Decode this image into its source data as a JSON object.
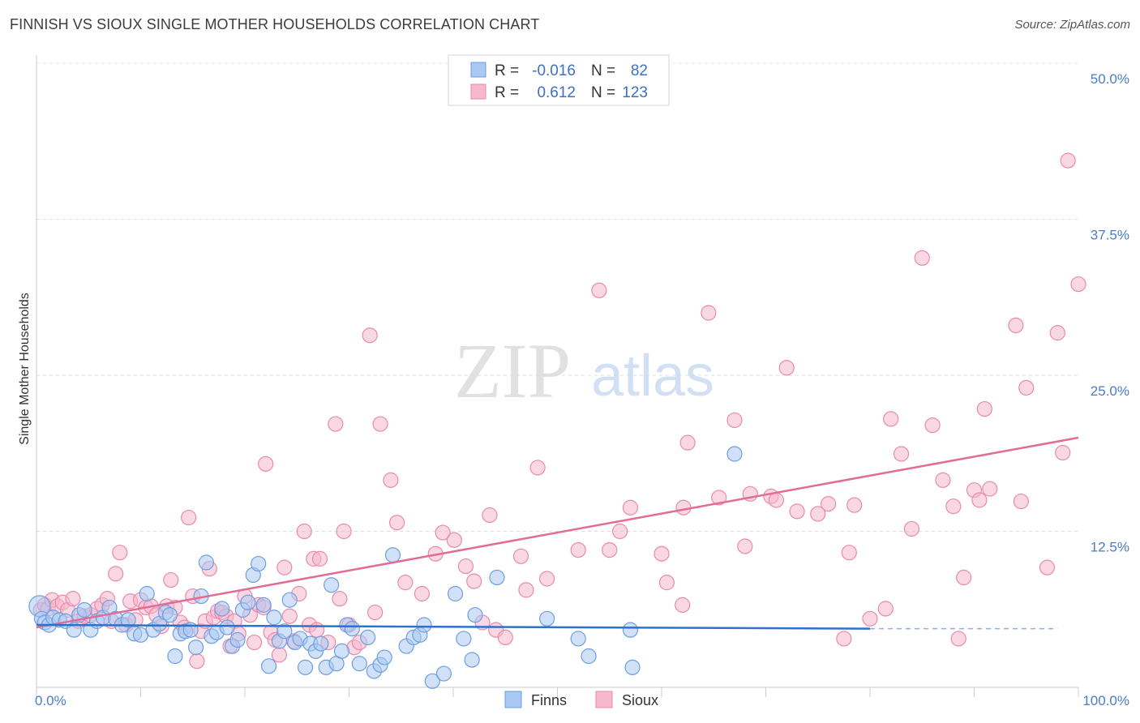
{
  "title": "FINNISH VS SIOUX SINGLE MOTHER HOUSEHOLDS CORRELATION CHART",
  "source": "Source: ZipAtlas.com",
  "watermark": {
    "zip": "ZIP",
    "atlas": "atlas"
  },
  "legend": [
    {
      "r_label": "R =",
      "r_value": "-0.016",
      "n_label": "N =",
      "n_value": "82",
      "color": "#a9c8f2"
    },
    {
      "r_label": "R =",
      "r_value": "0.612",
      "n_label": "N =",
      "n_value": "123",
      "color": "#f6b8cc"
    }
  ],
  "chart_data": {
    "type": "scatter",
    "title": "FINNISH VS SIOUX SINGLE MOTHER HOUSEHOLDS CORRELATION CHART",
    "xlabel": "",
    "ylabel": "Single Mother Households",
    "xlim": [
      0,
      100
    ],
    "ylim": [
      0,
      50
    ],
    "x_tick_labels": [
      "0.0%",
      "100.0%"
    ],
    "y_ticks": [
      12.5,
      25.0,
      37.5,
      50.0
    ],
    "y_tick_labels": [
      "12.5%",
      "25.0%",
      "37.5%",
      "50.0%"
    ],
    "grid": true,
    "legend_position": "bottom-center",
    "series": [
      {
        "name": "Finns",
        "color": "#a9c8f2",
        "edge": "#6d9fe0",
        "trend": {
          "x": [
            0,
            80
          ],
          "y": [
            5.0,
            4.7
          ]
        },
        "trend_dashed": {
          "x": [
            80,
            98
          ],
          "y": [
            4.7,
            4.7
          ]
        },
        "points": [
          [
            0.3,
            6.5
          ],
          [
            0.5,
            5.5
          ],
          [
            0.8,
            5.2
          ],
          [
            1.2,
            5.0
          ],
          [
            1.6,
            5.6
          ],
          [
            2.2,
            5.4
          ],
          [
            2.8,
            5.3
          ],
          [
            3.6,
            4.6
          ],
          [
            4.1,
            5.8
          ],
          [
            4.6,
            6.2
          ],
          [
            5.2,
            4.6
          ],
          [
            5.8,
            5.3
          ],
          [
            6.4,
            5.6
          ],
          [
            7.0,
            6.4
          ],
          [
            7.6,
            5.5
          ],
          [
            8.2,
            5.0
          ],
          [
            8.8,
            5.4
          ],
          [
            9.4,
            4.3
          ],
          [
            10.0,
            4.2
          ],
          [
            10.6,
            7.5
          ],
          [
            11.2,
            4.6
          ],
          [
            11.8,
            5.1
          ],
          [
            12.4,
            6.0
          ],
          [
            12.8,
            5.8
          ],
          [
            13.3,
            2.5
          ],
          [
            13.8,
            4.3
          ],
          [
            14.3,
            4.5
          ],
          [
            14.8,
            4.6
          ],
          [
            15.3,
            3.2
          ],
          [
            15.8,
            7.3
          ],
          [
            16.3,
            10.0
          ],
          [
            16.8,
            4.1
          ],
          [
            17.3,
            4.4
          ],
          [
            17.8,
            6.3
          ],
          [
            18.3,
            4.8
          ],
          [
            18.8,
            3.3
          ],
          [
            19.3,
            3.8
          ],
          [
            19.8,
            6.2
          ],
          [
            20.3,
            6.8
          ],
          [
            20.8,
            9.0
          ],
          [
            21.3,
            9.9
          ],
          [
            21.8,
            6.6
          ],
          [
            22.3,
            1.7
          ],
          [
            22.8,
            5.6
          ],
          [
            23.3,
            3.7
          ],
          [
            23.8,
            4.5
          ],
          [
            24.3,
            7.0
          ],
          [
            24.8,
            3.6
          ],
          [
            25.3,
            3.9
          ],
          [
            25.8,
            1.6
          ],
          [
            26.3,
            3.5
          ],
          [
            26.8,
            2.9
          ],
          [
            27.3,
            3.5
          ],
          [
            27.8,
            1.6
          ],
          [
            28.3,
            8.2
          ],
          [
            28.8,
            1.9
          ],
          [
            29.3,
            2.9
          ],
          [
            29.8,
            5.0
          ],
          [
            30.3,
            4.7
          ],
          [
            31.0,
            1.9
          ],
          [
            31.8,
            4.0
          ],
          [
            32.4,
            1.3
          ],
          [
            33.0,
            1.8
          ],
          [
            33.4,
            2.4
          ],
          [
            34.2,
            10.6
          ],
          [
            35.5,
            3.3
          ],
          [
            36.2,
            4.0
          ],
          [
            36.8,
            4.2
          ],
          [
            37.2,
            5.0
          ],
          [
            38.0,
            0.5
          ],
          [
            39.1,
            1.1
          ],
          [
            40.2,
            7.5
          ],
          [
            41.0,
            3.9
          ],
          [
            41.8,
            2.2
          ],
          [
            42.1,
            5.8
          ],
          [
            44.2,
            8.8
          ],
          [
            49.0,
            5.5
          ],
          [
            52.0,
            3.9
          ],
          [
            53.0,
            2.5
          ],
          [
            57.0,
            4.6
          ],
          [
            57.2,
            1.6
          ],
          [
            67.0,
            18.7
          ]
        ]
      },
      {
        "name": "Sioux",
        "color": "#f6b8cc",
        "edge": "#e98aab",
        "trend": {
          "x": [
            0,
            100
          ],
          "y": [
            4.8,
            20.0
          ]
        },
        "points": [
          [
            0.4,
            6.2
          ],
          [
            0.8,
            6.6
          ],
          [
            1.1,
            6.3
          ],
          [
            1.5,
            7.0
          ],
          [
            2.0,
            6.5
          ],
          [
            2.5,
            6.8
          ],
          [
            3.0,
            6.2
          ],
          [
            3.5,
            7.1
          ],
          [
            4.0,
            5.3
          ],
          [
            4.6,
            5.7
          ],
          [
            5.2,
            5.8
          ],
          [
            5.8,
            6.3
          ],
          [
            6.3,
            6.6
          ],
          [
            6.8,
            7.1
          ],
          [
            7.2,
            5.3
          ],
          [
            7.6,
            9.1
          ],
          [
            8.0,
            10.8
          ],
          [
            8.6,
            5.0
          ],
          [
            9.0,
            6.9
          ],
          [
            9.5,
            5.4
          ],
          [
            10.0,
            7.0
          ],
          [
            10.5,
            6.4
          ],
          [
            11.0,
            6.5
          ],
          [
            11.5,
            5.8
          ],
          [
            12.0,
            4.9
          ],
          [
            12.5,
            6.5
          ],
          [
            12.9,
            8.6
          ],
          [
            13.3,
            6.4
          ],
          [
            13.8,
            5.2
          ],
          [
            14.2,
            4.8
          ],
          [
            14.6,
            13.6
          ],
          [
            15.0,
            7.3
          ],
          [
            15.4,
            2.1
          ],
          [
            15.8,
            4.5
          ],
          [
            16.2,
            5.3
          ],
          [
            16.6,
            9.5
          ],
          [
            17.0,
            5.6
          ],
          [
            17.4,
            6.1
          ],
          [
            17.8,
            6.0
          ],
          [
            18.2,
            5.7
          ],
          [
            18.6,
            3.3
          ],
          [
            19.0,
            5.3
          ],
          [
            19.4,
            4.3
          ],
          [
            20.0,
            7.3
          ],
          [
            20.5,
            5.8
          ],
          [
            20.9,
            3.6
          ],
          [
            21.3,
            6.6
          ],
          [
            21.8,
            6.4
          ],
          [
            22.0,
            17.9
          ],
          [
            22.5,
            4.4
          ],
          [
            22.9,
            3.8
          ],
          [
            23.3,
            2.6
          ],
          [
            23.8,
            9.6
          ],
          [
            24.3,
            5.7
          ],
          [
            24.7,
            3.7
          ],
          [
            25.2,
            7.5
          ],
          [
            25.7,
            12.5
          ],
          [
            26.2,
            5.0
          ],
          [
            26.6,
            10.3
          ],
          [
            26.9,
            4.6
          ],
          [
            27.2,
            10.3
          ],
          [
            28.0,
            3.6
          ],
          [
            28.7,
            21.1
          ],
          [
            29.1,
            7.1
          ],
          [
            29.5,
            12.5
          ],
          [
            30.0,
            5.0
          ],
          [
            30.5,
            3.2
          ],
          [
            31.0,
            3.6
          ],
          [
            32.0,
            28.2
          ],
          [
            32.5,
            6.0
          ],
          [
            33.0,
            21.1
          ],
          [
            34.0,
            16.6
          ],
          [
            34.6,
            13.2
          ],
          [
            35.4,
            8.4
          ],
          [
            37.0,
            7.5
          ],
          [
            38.3,
            10.7
          ],
          [
            39.0,
            12.4
          ],
          [
            40.1,
            11.8
          ],
          [
            41.2,
            9.7
          ],
          [
            42.0,
            8.5
          ],
          [
            42.8,
            5.2
          ],
          [
            43.5,
            13.8
          ],
          [
            44.1,
            4.6
          ],
          [
            45.0,
            4.0
          ],
          [
            46.5,
            10.5
          ],
          [
            47.0,
            7.8
          ],
          [
            48.1,
            17.6
          ],
          [
            49.0,
            8.7
          ],
          [
            52.0,
            11.0
          ],
          [
            54.0,
            31.8
          ],
          [
            55.0,
            11.0
          ],
          [
            56.0,
            12.5
          ],
          [
            57.0,
            14.4
          ],
          [
            60.0,
            10.7
          ],
          [
            60.5,
            8.4
          ],
          [
            62.0,
            6.6
          ],
          [
            62.1,
            14.4
          ],
          [
            62.5,
            19.6
          ],
          [
            64.5,
            30.0
          ],
          [
            65.5,
            15.2
          ],
          [
            67.0,
            21.4
          ],
          [
            68.0,
            11.3
          ],
          [
            68.5,
            15.5
          ],
          [
            70.5,
            15.3
          ],
          [
            71.0,
            15.0
          ],
          [
            72.0,
            25.6
          ],
          [
            73.0,
            14.1
          ],
          [
            75.0,
            13.9
          ],
          [
            76.0,
            14.7
          ],
          [
            77.5,
            3.9
          ],
          [
            78.0,
            10.8
          ],
          [
            78.5,
            14.6
          ],
          [
            80.0,
            5.5
          ],
          [
            81.5,
            6.3
          ],
          [
            82.0,
            21.5
          ],
          [
            83.0,
            18.7
          ],
          [
            84.0,
            12.7
          ],
          [
            85.0,
            34.4
          ],
          [
            86.0,
            21.0
          ],
          [
            87.0,
            16.6
          ],
          [
            88.0,
            14.5
          ],
          [
            88.5,
            3.9
          ],
          [
            89.0,
            8.8
          ],
          [
            90.0,
            15.8
          ],
          [
            90.5,
            15.0
          ],
          [
            91.0,
            22.3
          ],
          [
            91.5,
            15.9
          ],
          [
            94.0,
            29.0
          ],
          [
            94.5,
            14.9
          ],
          [
            95.0,
            24.0
          ],
          [
            97.0,
            9.6
          ],
          [
            98.0,
            28.4
          ],
          [
            98.5,
            18.8
          ],
          [
            99.0,
            42.2
          ],
          [
            100.0,
            32.3
          ]
        ]
      }
    ]
  }
}
